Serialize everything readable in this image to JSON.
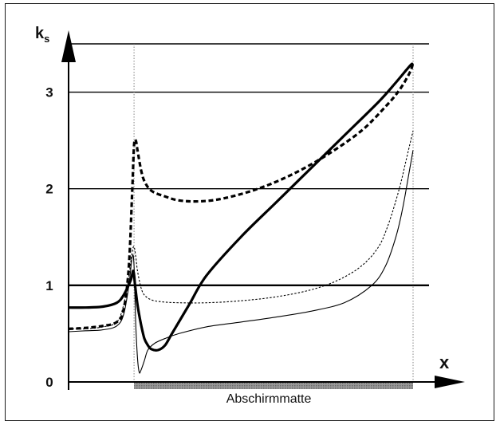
{
  "chart_data": {
    "type": "line",
    "title": "",
    "xlabel": "x",
    "ylabel": "k",
    "ylabel_subscript": "s",
    "ylim": [
      0,
      3.5
    ],
    "yticks": [
      "0",
      "1",
      "2",
      "3"
    ],
    "ytick_values": [
      0,
      1,
      2,
      3
    ],
    "grid": true,
    "x_range": [
      0,
      100
    ],
    "region": {
      "label": "Abschirmmatte",
      "x_start": 19,
      "x_end": 100
    },
    "series": [
      {
        "name": "",
        "style": "thick-solid",
        "x": [
          0,
          5,
          10,
          14,
          16,
          18,
          18.8,
          19.3,
          20,
          21,
          22,
          23,
          24,
          26,
          28,
          30,
          35,
          40,
          50,
          60,
          70,
          80,
          90,
          95,
          99,
          100
        ],
        "y": [
          0.77,
          0.77,
          0.78,
          0.82,
          0.9,
          1.05,
          1.15,
          1.0,
          0.8,
          0.6,
          0.45,
          0.38,
          0.34,
          0.33,
          0.38,
          0.5,
          0.8,
          1.1,
          1.5,
          1.85,
          2.2,
          2.55,
          2.9,
          3.1,
          3.27,
          3.3
        ]
      },
      {
        "name": "",
        "style": "thick-dashed",
        "x": [
          0,
          5,
          10,
          14,
          16,
          17.5,
          18.5,
          19,
          19.5,
          20,
          21,
          22,
          24,
          28,
          32,
          38,
          45,
          55,
          65,
          75,
          85,
          92,
          96,
          99,
          100
        ],
        "y": [
          0.55,
          0.56,
          0.58,
          0.62,
          0.75,
          1.2,
          2.0,
          2.45,
          2.5,
          2.4,
          2.2,
          2.08,
          1.98,
          1.92,
          1.88,
          1.87,
          1.9,
          2.0,
          2.15,
          2.35,
          2.6,
          2.85,
          3.02,
          3.2,
          3.3
        ]
      },
      {
        "name": "",
        "style": "thin-solid",
        "x": [
          0,
          5,
          10,
          14,
          16,
          17.5,
          18.5,
          19,
          19.5,
          20,
          20.5,
          21,
          22,
          23,
          25,
          28,
          32,
          40,
          50,
          60,
          70,
          80,
          88,
          92,
          95,
          97,
          99,
          100
        ],
        "y": [
          0.52,
          0.53,
          0.54,
          0.58,
          0.7,
          1.0,
          1.3,
          1.2,
          0.6,
          0.25,
          0.1,
          0.12,
          0.22,
          0.33,
          0.4,
          0.45,
          0.5,
          0.57,
          0.62,
          0.67,
          0.73,
          0.82,
          1.0,
          1.2,
          1.5,
          1.8,
          2.2,
          2.4
        ]
      },
      {
        "name": "",
        "style": "thin-dashed",
        "x": [
          0,
          5,
          10,
          14,
          16,
          17.5,
          18.5,
          19,
          19.5,
          20,
          21,
          22,
          24,
          27,
          32,
          40,
          50,
          60,
          70,
          78,
          85,
          90,
          93,
          96,
          98,
          100
        ],
        "y": [
          0.55,
          0.55,
          0.57,
          0.62,
          0.8,
          1.1,
          1.35,
          1.4,
          1.3,
          1.15,
          0.98,
          0.9,
          0.85,
          0.83,
          0.82,
          0.82,
          0.84,
          0.88,
          0.95,
          1.05,
          1.2,
          1.4,
          1.65,
          2.0,
          2.3,
          2.6
        ]
      }
    ]
  }
}
